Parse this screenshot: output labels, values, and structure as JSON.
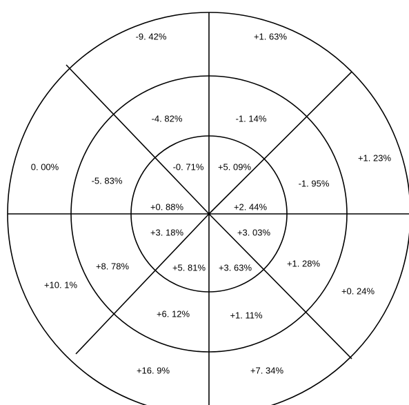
{
  "diagram": {
    "outer_ring": {
      "labels": [
        "-9. 42%",
        "+1. 63%",
        "+1. 23%",
        "0. 00%",
        "+10. 1%",
        "+0. 24%",
        "+16. 9%",
        "+7. 34%"
      ]
    },
    "middle_ring": {
      "labels": [
        "-4. 82%",
        "-1. 14%",
        "-5. 83%",
        "-1. 95%",
        "+8. 78%",
        "+1. 28%",
        "+6. 12%",
        "+1. 11%"
      ]
    },
    "inner_ring": {
      "labels": [
        "-0. 71%",
        "+5. 09%",
        "+0. 88%",
        "+2. 44%",
        "+3. 18%",
        "+3. 03%",
        "+5. 81%",
        "+3. 63%"
      ]
    }
  }
}
